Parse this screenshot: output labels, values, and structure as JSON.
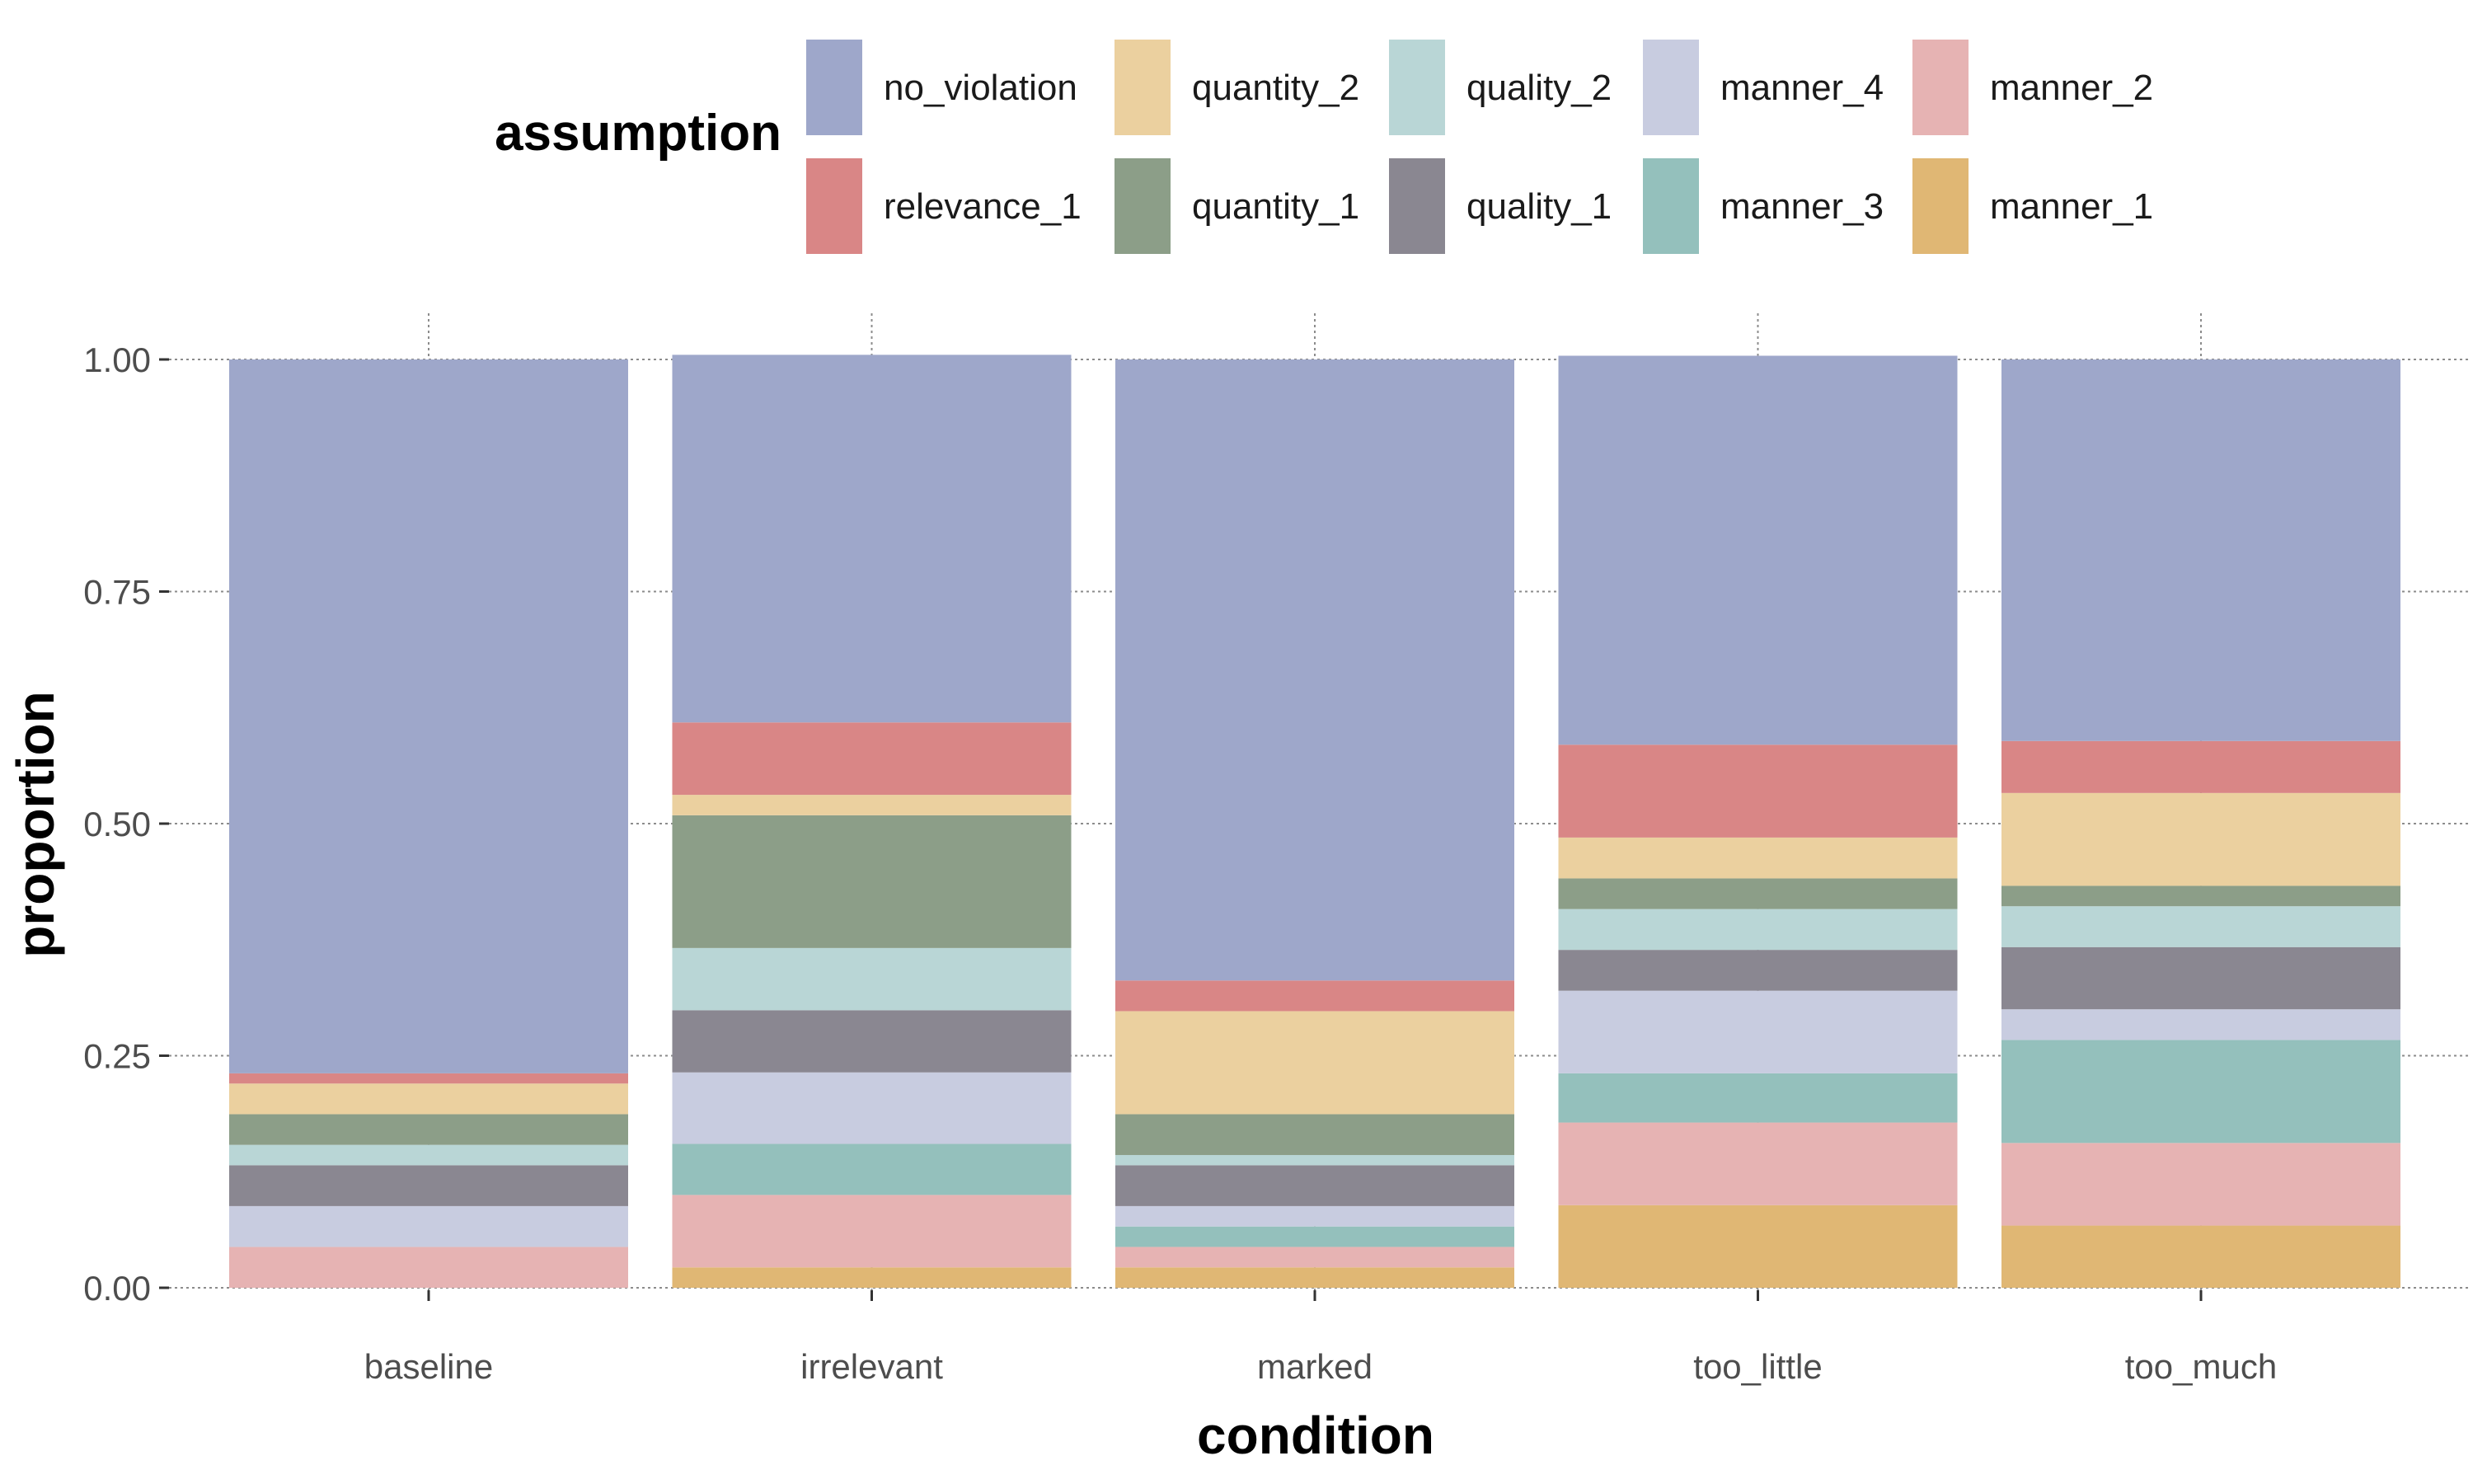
{
  "chart_data": {
    "type": "bar",
    "stacked": true,
    "title": "",
    "xlabel": "condition",
    "ylabel": "proportion",
    "ylim": [
      0,
      1
    ],
    "yticks": [
      "0.00",
      "0.25",
      "0.50",
      "0.75",
      "1.00"
    ],
    "grid": true,
    "legend_title": "assumption",
    "legend_position": "top",
    "categories": [
      "baseline",
      "irrelevant",
      "marked",
      "too_little",
      "too_much"
    ],
    "series": [
      {
        "name": "manner_1",
        "color": "#E0B774",
        "values": [
          0.0,
          0.022,
          0.022,
          0.089,
          0.067
        ]
      },
      {
        "name": "manner_2",
        "color": "#E6B3B3",
        "values": [
          0.044,
          0.078,
          0.022,
          0.089,
          0.089
        ]
      },
      {
        "name": "manner_3",
        "color": "#94C0BC",
        "values": [
          0.0,
          0.055,
          0.022,
          0.053,
          0.111
        ]
      },
      {
        "name": "manner_4",
        "color": "#C8CCE0",
        "values": [
          0.044,
          0.077,
          0.022,
          0.089,
          0.033
        ]
      },
      {
        "name": "quality_1",
        "color": "#8A8791",
        "values": [
          0.044,
          0.067,
          0.044,
          0.044,
          0.067
        ]
      },
      {
        "name": "quality_2",
        "color": "#B9D6D6",
        "values": [
          0.022,
          0.067,
          0.011,
          0.044,
          0.044
        ]
      },
      {
        "name": "quantity_1",
        "color": "#8C9E88",
        "values": [
          0.033,
          0.143,
          0.044,
          0.033,
          0.022
        ]
      },
      {
        "name": "quantity_2",
        "color": "#EBD09F",
        "values": [
          0.033,
          0.022,
          0.111,
          0.044,
          0.1
        ]
      },
      {
        "name": "relevance_1",
        "color": "#D98686",
        "values": [
          0.011,
          0.078,
          0.033,
          0.1,
          0.056
        ]
      },
      {
        "name": "no_violation",
        "color": "#9EA7CA",
        "values": [
          0.769,
          0.396,
          0.669,
          0.419,
          0.411
        ]
      }
    ],
    "legend_order": [
      "no_violation",
      "quantity_2",
      "quality_2",
      "manner_4",
      "manner_2",
      "relevance_1",
      "quantity_1",
      "quality_1",
      "manner_3",
      "manner_1"
    ]
  }
}
